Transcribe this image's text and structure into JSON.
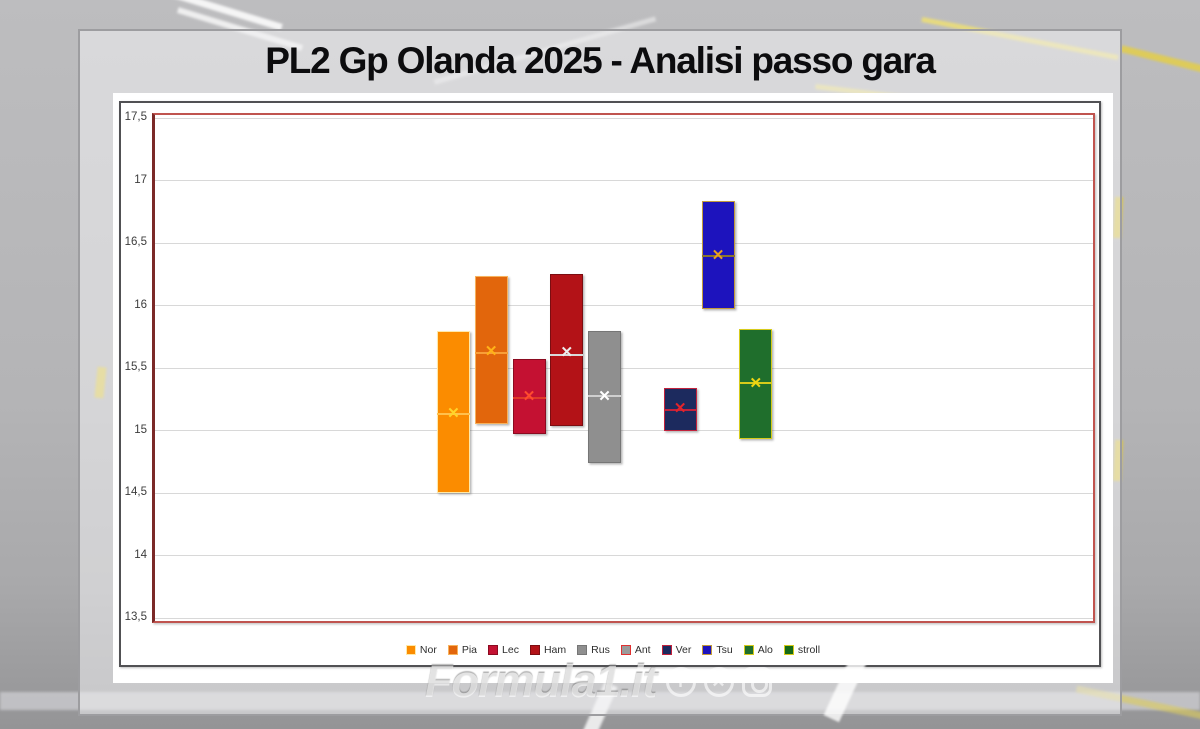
{
  "title": "PL2 Gp Olanda 2025 - Analisi passo gara",
  "watermark": {
    "text": "Formula1.it",
    "icons": [
      {
        "name": "facebook-icon",
        "glyph": "f",
        "shape": "circle"
      },
      {
        "name": "x-icon",
        "glyph": "✕",
        "shape": "circle"
      },
      {
        "name": "instagram-icon",
        "glyph": "",
        "shape": "square"
      }
    ]
  },
  "chart_data": {
    "type": "box",
    "title": "PL2 Gp Olanda 2025 - Analisi passo gara",
    "ylabel": "",
    "xlabel": "",
    "ylim": [
      13.5,
      17.5
    ],
    "ytick_step": 0.5,
    "ytick_labels": [
      "17,5",
      "17",
      "16,5",
      "16",
      "15,5",
      "15",
      "14,5",
      "14",
      "13,5"
    ],
    "grid": true,
    "legend_position": "bottom",
    "series": [
      {
        "name": "Nor",
        "fill": "#FB8C00",
        "border": "#FFE9A8",
        "marker": "#FFD42A",
        "median_color": "#FFC04D",
        "min": 14.5,
        "max": 15.79,
        "mean": 15.13,
        "median": 15.13
      },
      {
        "name": "Pia",
        "fill": "#E2660C",
        "border": "#F7B25C",
        "marker": "#FFB319",
        "median_color": "#F89E38",
        "min": 15.05,
        "max": 16.23,
        "mean": 15.63,
        "median": 15.62
      },
      {
        "name": "Lec",
        "fill": "#C41132",
        "border": "#8B0A20",
        "marker": "#FF4B2E",
        "median_color": "#E03A28",
        "min": 14.97,
        "max": 15.57,
        "mean": 15.27,
        "median": 15.26
      },
      {
        "name": "Ham",
        "fill": "#B31217",
        "border": "#7C0D11",
        "marker": "#ECECEC",
        "median_color": "#D9D9D9",
        "min": 15.03,
        "max": 16.25,
        "mean": 15.62,
        "median": 15.6
      },
      {
        "name": "Rus",
        "fill": "#8F8F8F",
        "border": "#767676",
        "marker": "#FFFFFF",
        "median_color": "#CFCFCF",
        "min": 14.74,
        "max": 15.79,
        "mean": 15.27,
        "median": 15.27
      },
      {
        "name": "Ant",
        "fill": "#9A9A9A",
        "border": "#E03030",
        "marker": "#E03030",
        "median_color": "#E03030",
        "min": null,
        "max": null,
        "mean": null,
        "median": null
      },
      {
        "name": "Ver",
        "fill": "#1C2A5E",
        "border": "#C2223C",
        "marker": "#E3242B",
        "median_color": "#C2223C",
        "min": 14.99,
        "max": 15.34,
        "mean": 15.17,
        "median": 15.16
      },
      {
        "name": "Tsu",
        "fill": "#1D13BD",
        "border": "#C29A3C",
        "marker": "#E8A020",
        "median_color": "#8A7430",
        "min": 15.97,
        "max": 16.83,
        "mean": 16.4,
        "median": 16.39
      },
      {
        "name": "Alo",
        "fill": "#1F6E2C",
        "border": "#D6CB1B",
        "marker": "#EFD511",
        "median_color": "#D6CB1B",
        "min": 14.93,
        "max": 15.81,
        "mean": 15.37,
        "median": 15.38
      },
      {
        "name": "stroll",
        "fill": "#166A16",
        "border": "#D6CB1B",
        "marker": "#EFD511",
        "median_color": "#D6CB1B",
        "min": null,
        "max": null,
        "mean": null,
        "median": null
      }
    ]
  }
}
